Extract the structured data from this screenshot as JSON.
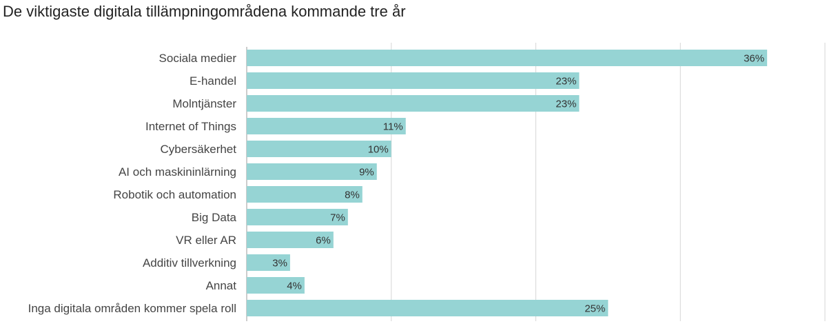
{
  "chart_data": {
    "type": "bar",
    "orientation": "horizontal",
    "title": "De viktigaste digitala tillämpningområdena kommande tre år",
    "categories": [
      "Sociala medier",
      "E-handel",
      "Molntjänster",
      "Internet of Things",
      "Cybersäkerhet",
      "AI och maskininlärning",
      "Robotik och automation",
      "Big Data",
      "VR eller AR",
      "Additiv tillverkning",
      "Annat",
      "Inga digitala områden kommer spela roll"
    ],
    "values": [
      36,
      23,
      23,
      11,
      10,
      9,
      8,
      7,
      6,
      3,
      4,
      25
    ],
    "value_labels": [
      "36%",
      "23%",
      "23%",
      "11%",
      "10%",
      "9%",
      "8%",
      "7%",
      "6%",
      "3%",
      "4%",
      "25%"
    ],
    "xlim": [
      0,
      40
    ],
    "grid_x": [
      10,
      20,
      30,
      40
    ],
    "grid": true,
    "bar_color": "#96d4d4"
  }
}
